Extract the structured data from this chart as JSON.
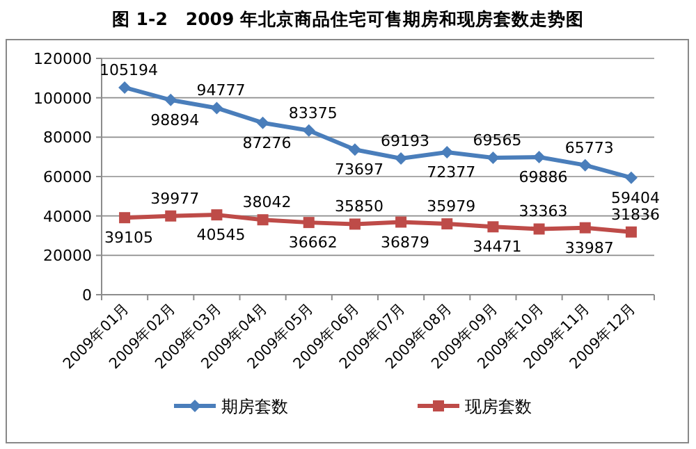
{
  "chart_data": {
    "type": "line",
    "title": "图 1-2　2009 年北京商品住宅可售期房和现房套数走势图",
    "categories": [
      "2009年01月",
      "2009年02月",
      "2009年03月",
      "2009年04月",
      "2009年05月",
      "2009年06月",
      "2009年07月",
      "2009年08月",
      "2009年09月",
      "2009年10月",
      "2009年11月",
      "2009年12月"
    ],
    "series": [
      {
        "name": "期房套数",
        "color": "#4a7ebb",
        "marker": "diamond",
        "values": [
          105194,
          98894,
          94777,
          87276,
          83375,
          73697,
          69193,
          72377,
          69565,
          69886,
          65773,
          59404
        ]
      },
      {
        "name": "现房套数",
        "color": "#be4b48",
        "marker": "square",
        "values": [
          39105,
          39977,
          40545,
          38042,
          36662,
          35850,
          36879,
          35979,
          34471,
          33363,
          33987,
          31836
        ]
      }
    ],
    "ylim": [
      0,
      120000
    ],
    "yticks": [
      0,
      20000,
      40000,
      60000,
      80000,
      100000,
      120000
    ],
    "grid": "y",
    "legend": "bottom",
    "data_labels": true
  }
}
